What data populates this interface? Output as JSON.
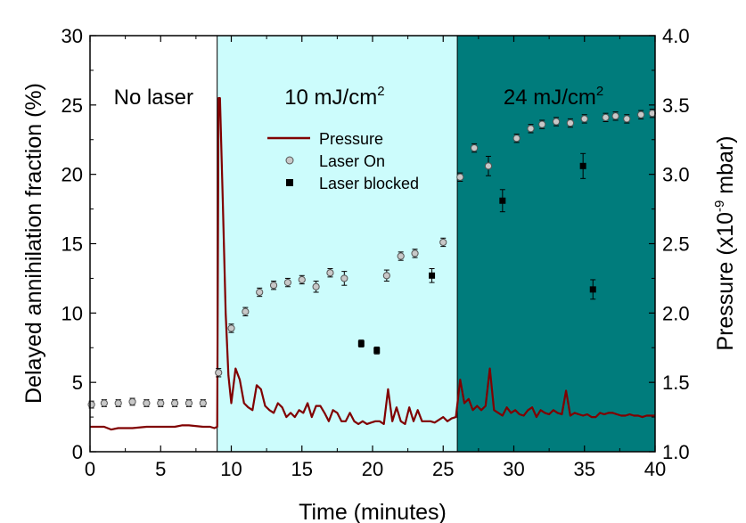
{
  "chart_data": {
    "type": "scatter",
    "xlabel": "Time (minutes)",
    "ylabel": "Delayed annihilation fraction  (%)",
    "y2label_main": "Pressure (x10",
    "y2label_exp": "-9",
    "y2label_unit": " mbar)",
    "xlim": [
      0,
      40
    ],
    "ylim": [
      0,
      30
    ],
    "y2lim": [
      1.0,
      4.0
    ],
    "xticks": [
      "0",
      "5",
      "10",
      "15",
      "20",
      "25",
      "30",
      "35",
      "40"
    ],
    "yticks": [
      "0",
      "5",
      "10",
      "15",
      "20",
      "25",
      "30"
    ],
    "y2ticks": [
      "1.0",
      "1.5",
      "2.0",
      "2.5",
      "3.0",
      "3.5",
      "4.0"
    ],
    "grid": false,
    "legend_position": "upper-left of middle region",
    "regions": [
      {
        "label": "No laser",
        "sup": "",
        "x_start": 0,
        "x_end": 9,
        "color": "#ffffff"
      },
      {
        "label": "10 mJ/cm",
        "sup": "2",
        "x_start": 9,
        "x_end": 26,
        "color": "#ccfcfc"
      },
      {
        "label": "24 mJ/cm",
        "sup": "2",
        "x_start": 26,
        "x_end": 40,
        "color": "#007c7c"
      }
    ],
    "series": [
      {
        "name": "Pressure",
        "axis": "right",
        "style": "line",
        "color": "#800000",
        "x": [
          0,
          1,
          1.5,
          2,
          3,
          4,
          5,
          6,
          6.5,
          7,
          8,
          8.5,
          8.8,
          9.0,
          9.1,
          9.2,
          9.4,
          9.6,
          9.8,
          10.0,
          10.3,
          10.6,
          10.9,
          11.2,
          11.5,
          11.8,
          12.1,
          12.4,
          12.7,
          13.0,
          13.3,
          13.6,
          13.9,
          14.2,
          14.5,
          14.8,
          15.1,
          15.4,
          15.7,
          16.0,
          16.3,
          16.6,
          16.9,
          17.2,
          17.5,
          17.8,
          18.1,
          18.4,
          18.7,
          19.0,
          19.3,
          19.6,
          19.9,
          20.2,
          20.5,
          20.8,
          21.1,
          21.4,
          21.7,
          22.0,
          22.3,
          22.6,
          22.9,
          23.2,
          23.5,
          23.8,
          24.1,
          24.4,
          24.7,
          25.0,
          25.3,
          25.6,
          25.9,
          26.2,
          26.5,
          26.8,
          27.1,
          27.4,
          27.7,
          28.0,
          28.3,
          28.6,
          28.9,
          29.2,
          29.5,
          29.8,
          30.1,
          30.4,
          30.7,
          31.0,
          31.3,
          31.6,
          31.9,
          32.2,
          32.5,
          32.8,
          33.1,
          33.4,
          33.7,
          34.0,
          34.3,
          34.6,
          34.9,
          35.2,
          35.5,
          35.8,
          36.1,
          36.4,
          36.7,
          37.0,
          37.3,
          37.6,
          37.9,
          38.2,
          38.5,
          38.8,
          39.1,
          39.4,
          39.7,
          40.0
        ],
        "y": [
          1.18,
          1.18,
          1.16,
          1.17,
          1.17,
          1.18,
          1.18,
          1.18,
          1.19,
          1.19,
          1.18,
          1.18,
          1.17,
          1.18,
          3.55,
          3.55,
          2.8,
          2.0,
          1.55,
          1.35,
          1.6,
          1.52,
          1.35,
          1.32,
          1.3,
          1.48,
          1.45,
          1.33,
          1.3,
          1.28,
          1.35,
          1.32,
          1.25,
          1.28,
          1.25,
          1.3,
          1.28,
          1.35,
          1.25,
          1.33,
          1.33,
          1.28,
          1.22,
          1.3,
          1.28,
          1.22,
          1.22,
          1.28,
          1.22,
          1.2,
          1.22,
          1.2,
          1.21,
          1.22,
          1.22,
          1.2,
          1.45,
          1.22,
          1.32,
          1.22,
          1.2,
          1.32,
          1.22,
          1.3,
          1.22,
          1.22,
          1.22,
          1.21,
          1.23,
          1.25,
          1.22,
          1.24,
          1.25,
          1.52,
          1.35,
          1.38,
          1.3,
          1.33,
          1.3,
          1.33,
          1.6,
          1.3,
          1.28,
          1.26,
          1.32,
          1.28,
          1.3,
          1.27,
          1.26,
          1.3,
          1.32,
          1.25,
          1.3,
          1.28,
          1.27,
          1.3,
          1.28,
          1.27,
          1.44,
          1.26,
          1.28,
          1.27,
          1.26,
          1.27,
          1.25,
          1.25,
          1.28,
          1.27,
          1.28,
          1.28,
          1.27,
          1.26,
          1.26,
          1.27,
          1.26,
          1.26,
          1.25,
          1.26,
          1.26,
          1.26
        ]
      },
      {
        "name": "Laser On",
        "axis": "left",
        "style": "marker-circle",
        "color": "#c8c8c8",
        "x": [
          0.1,
          1,
          2,
          3,
          4,
          5,
          6,
          7,
          8,
          9.1,
          10,
          11,
          12,
          13,
          14,
          15,
          16,
          17,
          18,
          21,
          22,
          23,
          25,
          26.2,
          27.2,
          28.2,
          30.2,
          31.2,
          32,
          33,
          34,
          35,
          36.5,
          37.2,
          38,
          39,
          39.8
        ],
        "y": [
          3.4,
          3.5,
          3.5,
          3.6,
          3.5,
          3.5,
          3.5,
          3.5,
          3.5,
          5.7,
          8.9,
          10.1,
          11.5,
          12.0,
          12.2,
          12.4,
          11.9,
          12.9,
          12.5,
          12.7,
          14.1,
          14.3,
          15.1,
          19.8,
          21.9,
          20.6,
          22.6,
          23.3,
          23.6,
          23.8,
          23.7,
          24.0,
          24.1,
          24.2,
          24.0,
          24.3,
          24.4
        ],
        "err": [
          0.25,
          0.25,
          0.25,
          0.25,
          0.25,
          0.25,
          0.25,
          0.25,
          0.25,
          0.3,
          0.3,
          0.3,
          0.3,
          0.3,
          0.3,
          0.3,
          0.4,
          0.3,
          0.5,
          0.4,
          0.3,
          0.3,
          0.3,
          0.3,
          0.3,
          0.7,
          0.3,
          0.3,
          0.3,
          0.3,
          0.3,
          0.3,
          0.3,
          0.3,
          0.3,
          0.3,
          0.3
        ]
      },
      {
        "name": "Laser blocked",
        "axis": "left",
        "style": "marker-square",
        "color": "#000000",
        "x": [
          19.2,
          20.3,
          24.2,
          29.2,
          34.9,
          35.6
        ],
        "y": [
          7.8,
          7.3,
          12.7,
          18.1,
          20.6,
          11.7
        ],
        "err": [
          0.25,
          0.25,
          0.5,
          0.8,
          0.9,
          0.7
        ]
      }
    ]
  }
}
